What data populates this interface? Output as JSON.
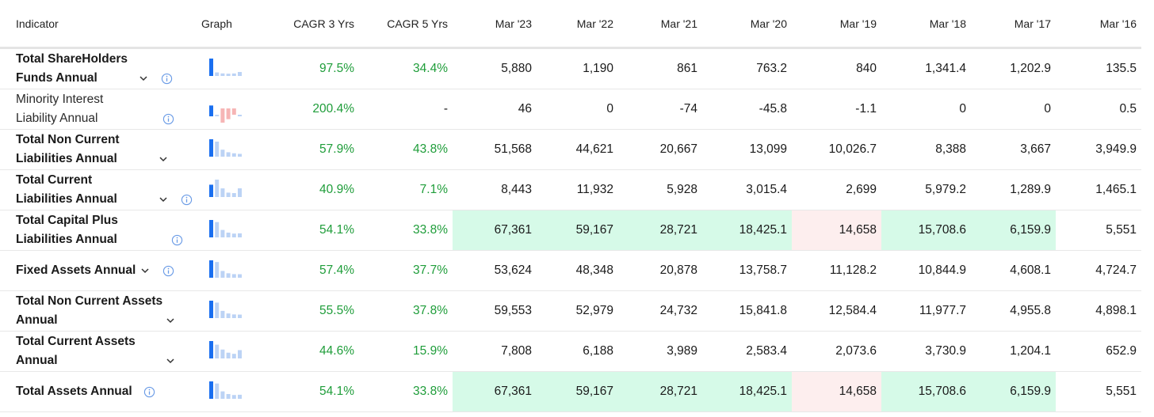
{
  "headers": {
    "indicator": "Indicator",
    "graph": "Graph",
    "cagr3": "CAGR 3 Yrs",
    "cagr5": "CAGR 5 Yrs",
    "years": [
      "Mar '23",
      "Mar '22",
      "Mar '21",
      "Mar '20",
      "Mar '19",
      "Mar '18",
      "Mar '17",
      "Mar '16"
    ]
  },
  "rows": [
    {
      "line1": "Total ShareHolders",
      "line2": "Funds Annual",
      "cagr3": "97.5%",
      "cagr5": "34.4%",
      "values": [
        "5,880",
        "1,190",
        "861",
        "763.2",
        "840",
        "1,341.4",
        "1,202.9",
        "135.5"
      ]
    },
    {
      "line1": "Minority Interest",
      "line2": "Liability Annual",
      "cagr3": "200.4%",
      "cagr5": "-",
      "values": [
        "46",
        "0",
        "-74",
        "-45.8",
        "-1.1",
        "0",
        "0",
        "0.5"
      ]
    },
    {
      "line1": "Total Non Current",
      "line2": "Liabilities Annual",
      "cagr3": "57.9%",
      "cagr5": "43.8%",
      "values": [
        "51,568",
        "44,621",
        "20,667",
        "13,099",
        "10,026.7",
        "8,388",
        "3,667",
        "3,949.9"
      ]
    },
    {
      "line1": "Total Current",
      "line2": "Liabilities Annual",
      "cagr3": "40.9%",
      "cagr5": "7.1%",
      "values": [
        "8,443",
        "11,932",
        "5,928",
        "3,015.4",
        "2,699",
        "5,979.2",
        "1,289.9",
        "1,465.1"
      ]
    },
    {
      "line1": "Total Capital Plus",
      "line2": "Liabilities Annual",
      "cagr3": "54.1%",
      "cagr5": "33.8%",
      "values": [
        "67,361",
        "59,167",
        "28,721",
        "18,425.1",
        "14,658",
        "15,708.6",
        "6,159.9",
        "5,551"
      ]
    },
    {
      "line1": "Fixed Assets Annual",
      "line2": "",
      "cagr3": "57.4%",
      "cagr5": "37.7%",
      "values": [
        "53,624",
        "48,348",
        "20,878",
        "13,758.7",
        "11,128.2",
        "10,844.9",
        "4,608.1",
        "4,724.7"
      ]
    },
    {
      "line1": "Total Non Current Assets",
      "line2": "Annual",
      "cagr3": "55.5%",
      "cagr5": "37.8%",
      "values": [
        "59,553",
        "52,979",
        "24,732",
        "15,841.8",
        "12,584.4",
        "11,977.7",
        "4,955.8",
        "4,898.1"
      ]
    },
    {
      "line1": "Total Current Assets",
      "line2": "Annual",
      "cagr3": "44.6%",
      "cagr5": "15.9%",
      "values": [
        "7,808",
        "6,188",
        "3,989",
        "2,583.4",
        "2,073.6",
        "3,730.9",
        "1,204.1",
        "652.9"
      ]
    },
    {
      "line1": "Total Assets Annual",
      "line2": "",
      "cagr3": "54.1%",
      "cagr5": "33.8%",
      "values": [
        "67,361",
        "59,167",
        "28,721",
        "18,425.1",
        "14,658",
        "15,708.6",
        "6,159.9",
        "5,551"
      ]
    }
  ],
  "colors": {
    "positive_text": "#1f9d3a",
    "highlight_green": "#d6fae8",
    "highlight_red": "#fdeeee",
    "spark_main": "#1a6ff0",
    "spark_light": "#bcd3f5",
    "spark_negative": "#f6b5b5"
  }
}
